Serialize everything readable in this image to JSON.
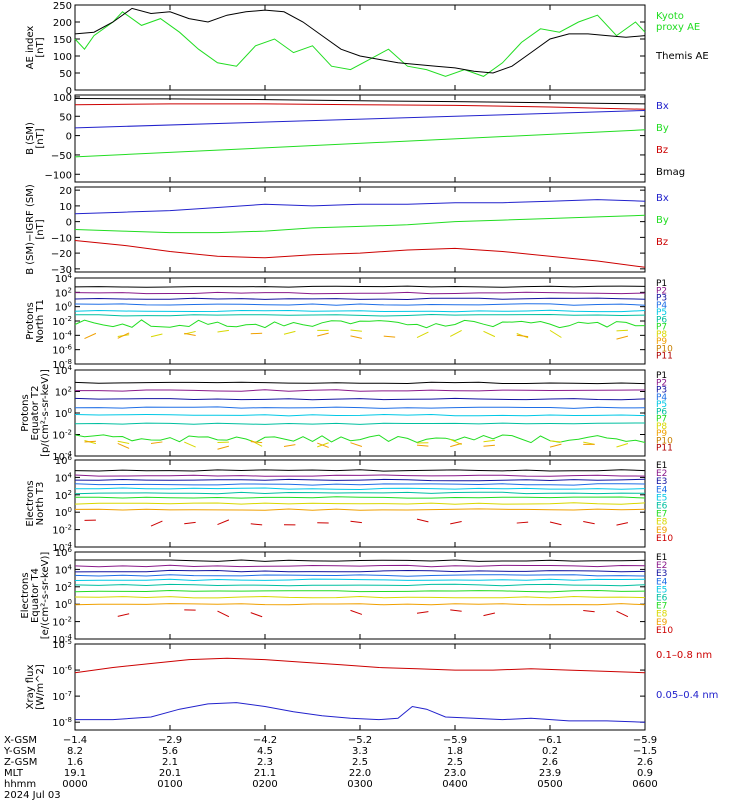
{
  "colors": {
    "black": "#000000",
    "red": "#cc0000",
    "green": "#22dd22",
    "blue": "#2222cc",
    "purple": "#8a1a8a",
    "navy": "#1414a0",
    "dodger": "#1e6ee6",
    "cyan": "#00c8e6",
    "teal": "#00bfa0",
    "yellow": "#d8d800",
    "orange": "#f0a000",
    "ochre": "#c88000",
    "darkred": "#b00000"
  },
  "chart_data": [
    {
      "type": "line",
      "id": "ae",
      "ylabel": [
        "AE index",
        "[nT]"
      ],
      "ylim": [
        0,
        250
      ],
      "yticks": [
        {
          "v": 0,
          "label": "0"
        },
        {
          "v": 50,
          "label": "50"
        },
        {
          "v": 100,
          "label": "100"
        },
        {
          "v": 150,
          "label": "150"
        },
        {
          "v": 200,
          "label": "200"
        },
        {
          "v": 250,
          "label": "250"
        }
      ],
      "series": [
        {
          "name": "Kyoto\nproxy AE",
          "color": "#22dd22",
          "x": [
            0,
            0.1,
            0.2,
            0.4,
            0.5,
            0.7,
            0.9,
            1.1,
            1.3,
            1.5,
            1.7,
            1.9,
            2.1,
            2.3,
            2.5,
            2.7,
            2.9,
            3.1,
            3.3,
            3.5,
            3.7,
            3.9,
            4.1,
            4.3,
            4.5,
            4.7,
            4.9,
            5.1,
            5.3,
            5.5,
            5.7,
            5.9,
            6.0
          ],
          "y": [
            150,
            120,
            160,
            200,
            230,
            190,
            210,
            170,
            120,
            80,
            70,
            130,
            150,
            110,
            130,
            70,
            60,
            90,
            120,
            70,
            60,
            40,
            60,
            40,
            80,
            140,
            180,
            170,
            200,
            220,
            160,
            200,
            170
          ]
        },
        {
          "name": "Themis AE",
          "color": "#000000",
          "x": [
            0,
            0.2,
            0.4,
            0.6,
            0.8,
            1.0,
            1.2,
            1.4,
            1.6,
            1.8,
            2.0,
            2.2,
            2.4,
            2.6,
            2.8,
            3.0,
            3.2,
            3.4,
            3.6,
            3.8,
            4.0,
            4.2,
            4.4,
            4.6,
            4.8,
            5.0,
            5.2,
            5.4,
            5.6,
            5.8,
            6.0
          ],
          "y": [
            165,
            170,
            200,
            240,
            225,
            230,
            210,
            200,
            220,
            230,
            235,
            230,
            200,
            160,
            120,
            100,
            90,
            80,
            75,
            70,
            65,
            55,
            50,
            70,
            110,
            150,
            165,
            165,
            160,
            155,
            160
          ]
        }
      ]
    },
    {
      "type": "line",
      "id": "bsm",
      "ylabel": [
        "B (SM)",
        "[nT]"
      ],
      "ylim": [
        -120,
        105
      ],
      "yticks": [
        {
          "v": -100,
          "label": "−100"
        },
        {
          "v": -50,
          "label": "−50"
        },
        {
          "v": 0,
          "label": "0"
        },
        {
          "v": 50,
          "label": "50"
        },
        {
          "v": 100,
          "label": "100"
        }
      ],
      "series": [
        {
          "name": "Bx",
          "color": "#2222cc",
          "x": [
            0,
            6
          ],
          "y": [
            20,
            65
          ]
        },
        {
          "name": "By",
          "color": "#22dd22",
          "x": [
            0,
            6
          ],
          "y": [
            -55,
            15
          ]
        },
        {
          "name": "Bz",
          "color": "#cc0000",
          "x": [
            0,
            1,
            2,
            3,
            4,
            5,
            6
          ],
          "y": [
            80,
            82,
            82,
            80,
            78,
            74,
            68
          ]
        },
        {
          "name": "Bmag",
          "color": "#000000",
          "x": [
            0,
            1,
            2,
            3,
            4,
            5,
            6
          ],
          "y": [
            96,
            95,
            93,
            90,
            88,
            85,
            82
          ]
        }
      ]
    },
    {
      "type": "line",
      "id": "bdiff",
      "ylabel": [
        "B (SM)−IGRF (SM)",
        "[nT]"
      ],
      "ylim": [
        -32,
        22
      ],
      "yticks": [
        {
          "v": -30,
          "label": "−30"
        },
        {
          "v": -20,
          "label": "−20"
        },
        {
          "v": -10,
          "label": "−10"
        },
        {
          "v": 0,
          "label": "0"
        },
        {
          "v": 10,
          "label": "10"
        },
        {
          "v": 20,
          "label": "20"
        }
      ],
      "series": [
        {
          "name": "Bx",
          "color": "#2222cc",
          "x": [
            0,
            0.5,
            1,
            1.5,
            2,
            2.5,
            3,
            3.5,
            4,
            4.5,
            5,
            5.5,
            6
          ],
          "y": [
            5,
            6,
            7,
            9,
            11,
            10,
            11,
            11,
            12,
            12,
            13,
            14,
            13
          ]
        },
        {
          "name": "By",
          "color": "#22dd22",
          "x": [
            0,
            0.5,
            1,
            1.5,
            2,
            2.5,
            3,
            3.5,
            4,
            4.5,
            5,
            5.5,
            6
          ],
          "y": [
            -5,
            -6,
            -7,
            -7,
            -6,
            -4,
            -3,
            -2,
            0,
            1,
            2,
            3,
            4
          ]
        },
        {
          "name": "Bz",
          "color": "#cc0000",
          "x": [
            0,
            0.5,
            1,
            1.5,
            2,
            2.5,
            3,
            3.5,
            4,
            4.5,
            5,
            5.5,
            6
          ],
          "y": [
            -12,
            -15,
            -19,
            -22,
            -23,
            -21,
            -20,
            -18,
            -17,
            -19,
            -22,
            -25,
            -29
          ]
        }
      ]
    },
    {
      "type": "line",
      "id": "pt1",
      "ylabel": [
        "Protons",
        "North T1"
      ],
      "log": true,
      "ylim": [
        -8,
        4
      ],
      "yticks": [
        {
          "v": 4,
          "label": "10",
          "exp": "4"
        },
        {
          "v": 2,
          "label": "10",
          "exp": "2"
        },
        {
          "v": 0,
          "label": "10",
          "exp": "0"
        },
        {
          "v": -2,
          "label": "10",
          "exp": "-2"
        },
        {
          "v": -4,
          "label": "10",
          "exp": "-4"
        },
        {
          "v": -6,
          "label": "10",
          "exp": "-6"
        },
        {
          "v": -8,
          "label": "10",
          "exp": "-8"
        }
      ],
      "series": [
        {
          "name": "P1",
          "color": "#000000",
          "level": 2.8
        },
        {
          "name": "P2",
          "color": "#8a1a8a",
          "level": 1.9
        },
        {
          "name": "P3",
          "color": "#1414a0",
          "level": 1.1
        },
        {
          "name": "P4",
          "color": "#1e6ee6",
          "level": 0.3
        },
        {
          "name": "P5",
          "color": "#00c8e6",
          "level": -0.6
        },
        {
          "name": "P6",
          "color": "#00bfa0",
          "level": -1.2
        },
        {
          "name": "P7",
          "color": "#22dd22",
          "level": -2.4,
          "noisy": true
        },
        {
          "name": "P8",
          "color": "#d8d800",
          "level": -3.8,
          "sparse": true
        },
        {
          "name": "P9",
          "color": "#f0a000",
          "level": -4.0,
          "sparse": true
        },
        {
          "name": "P10",
          "color": "#c88000"
        },
        {
          "name": "P11",
          "color": "#b00000"
        }
      ]
    },
    {
      "type": "line",
      "id": "pt2",
      "ylabel": [
        "Protons",
        "Equator T2",
        "[p/(cm²-s-sr-keV)]"
      ],
      "log": true,
      "ylim": [
        -4,
        4
      ],
      "yticks": [
        {
          "v": 4,
          "label": "10",
          "exp": "4"
        },
        {
          "v": 2,
          "label": "10",
          "exp": "2"
        },
        {
          "v": 0,
          "label": "10",
          "exp": "0"
        },
        {
          "v": -2,
          "label": "10",
          "exp": "-2"
        },
        {
          "v": -4,
          "label": "10",
          "exp": "-4"
        }
      ],
      "series": [
        {
          "name": "P1",
          "color": "#000000",
          "level": 2.8
        },
        {
          "name": "P2",
          "color": "#8a1a8a",
          "level": 2.1
        },
        {
          "name": "P3",
          "color": "#1414a0",
          "level": 1.3
        },
        {
          "name": "P4",
          "color": "#1e6ee6",
          "level": 0.5
        },
        {
          "name": "P5",
          "color": "#00c8e6",
          "level": -0.2
        },
        {
          "name": "P6",
          "color": "#00bfa0",
          "level": -1.0
        },
        {
          "name": "P7",
          "color": "#22dd22",
          "level": -2.4,
          "noisy": true
        },
        {
          "name": "P8",
          "color": "#d8d800",
          "level": -2.8,
          "sparse": true
        },
        {
          "name": "P9",
          "color": "#f0a000",
          "level": -3.0,
          "sparse": true
        },
        {
          "name": "P10",
          "color": "#c88000"
        },
        {
          "name": "P11",
          "color": "#b00000"
        }
      ]
    },
    {
      "type": "line",
      "id": "et3",
      "ylabel": [
        "Electrons",
        "North T3"
      ],
      "log": true,
      "ylim": [
        -4,
        6
      ],
      "yticks": [
        {
          "v": 6,
          "label": "10",
          "exp": "6"
        },
        {
          "v": 4,
          "label": "10",
          "exp": "4"
        },
        {
          "v": 2,
          "label": "10",
          "exp": "2"
        },
        {
          "v": 0,
          "label": "10",
          "exp": "0"
        },
        {
          "v": -2,
          "label": "10",
          "exp": "-2"
        },
        {
          "v": -4,
          "label": "10",
          "exp": "-4"
        }
      ],
      "series": [
        {
          "name": "E1",
          "color": "#000000",
          "level": 4.8
        },
        {
          "name": "E2",
          "color": "#8a1a8a",
          "level": 4.2
        },
        {
          "name": "E3",
          "color": "#1414a0",
          "level": 3.7
        },
        {
          "name": "E4",
          "color": "#1e6ee6",
          "level": 3.2
        },
        {
          "name": "E5",
          "color": "#00c8e6",
          "level": 2.7
        },
        {
          "name": "E6",
          "color": "#00bfa0",
          "level": 2.2
        },
        {
          "name": "E7",
          "color": "#22dd22",
          "level": 1.7
        },
        {
          "name": "E8",
          "color": "#d8d800",
          "level": 1.0
        },
        {
          "name": "E9",
          "color": "#f0a000",
          "level": 0.3
        },
        {
          "name": "E10",
          "color": "#cc0000",
          "level": -1.2,
          "sparse": true
        }
      ]
    },
    {
      "type": "line",
      "id": "et4",
      "ylabel": [
        "Electrons",
        "Equator T4",
        "[e/(cm²-s-sr-keV)]"
      ],
      "log": true,
      "ylim": [
        -4,
        6
      ],
      "yticks": [
        {
          "v": 6,
          "label": "10",
          "exp": "6"
        },
        {
          "v": 4,
          "label": "10",
          "exp": "4"
        },
        {
          "v": 2,
          "label": "10",
          "exp": "2"
        },
        {
          "v": 0,
          "label": "10",
          "exp": "0"
        },
        {
          "v": -2,
          "label": "10",
          "exp": "-2"
        },
        {
          "v": -4,
          "label": "10",
          "exp": "-4"
        }
      ],
      "series": [
        {
          "name": "E1",
          "color": "#000000",
          "level": 5.0
        },
        {
          "name": "E2",
          "color": "#8a1a8a",
          "level": 4.4
        },
        {
          "name": "E3",
          "color": "#1414a0",
          "level": 3.8
        },
        {
          "name": "E4",
          "color": "#1e6ee6",
          "level": 3.3
        },
        {
          "name": "E5",
          "color": "#00c8e6",
          "level": 2.8
        },
        {
          "name": "E6",
          "color": "#00bfa0",
          "level": 2.2
        },
        {
          "name": "E7",
          "color": "#22dd22",
          "level": 1.5
        },
        {
          "name": "E8",
          "color": "#d8d800",
          "level": 0.8
        },
        {
          "name": "E9",
          "color": "#f0a000",
          "level": 0.0
        },
        {
          "name": "E10",
          "color": "#cc0000",
          "level": -1.0,
          "sparse": true
        }
      ]
    },
    {
      "type": "line",
      "id": "xray",
      "ylabel": [
        "Xray flux",
        "[W/m^2]"
      ],
      "log": true,
      "ylim": [
        -8.3,
        -5
      ],
      "yticks": [
        {
          "v": -5,
          "label": "10",
          "exp": "-5"
        },
        {
          "v": -6,
          "label": "10",
          "exp": "-6"
        },
        {
          "v": -7,
          "label": "10",
          "exp": "-7"
        },
        {
          "v": -8,
          "label": "10",
          "exp": "-8"
        }
      ],
      "series": [
        {
          "name": "0.1–0.8 nm",
          "color": "#cc0000",
          "x": [
            0,
            0.4,
            0.8,
            1.2,
            1.6,
            2.0,
            2.4,
            2.8,
            3.2,
            3.6,
            4.0,
            4.4,
            4.8,
            5.2,
            5.6,
            6.0
          ],
          "y": [
            -6.1,
            -5.9,
            -5.75,
            -5.6,
            -5.55,
            -5.6,
            -5.7,
            -5.8,
            -5.9,
            -5.95,
            -6.0,
            -6.0,
            -5.95,
            -6.0,
            -6.05,
            -6.1
          ]
        },
        {
          "name": "0.05–0.4 nm",
          "color": "#2222cc",
          "x": [
            0,
            0.4,
            0.8,
            1.1,
            1.4,
            1.7,
            2.0,
            2.3,
            2.6,
            2.9,
            3.2,
            3.4,
            3.55,
            3.7,
            3.9,
            4.2,
            4.5,
            4.8,
            5.2,
            5.6,
            6.0
          ],
          "y": [
            -7.9,
            -7.9,
            -7.8,
            -7.5,
            -7.3,
            -7.25,
            -7.4,
            -7.6,
            -7.75,
            -7.85,
            -7.9,
            -7.85,
            -7.4,
            -7.5,
            -7.8,
            -7.85,
            -7.9,
            -7.85,
            -7.95,
            -7.95,
            -8.0
          ]
        }
      ]
    }
  ],
  "footer": {
    "row_labels": [
      "X-GSM",
      "Y-GSM",
      "Z-GSM",
      "MLT",
      "hhmm",
      "2024 Jul 03"
    ],
    "columns": [
      {
        "x": 0,
        "values": [
          "−1.4",
          "8.2",
          "1.6",
          "19.1",
          "0000"
        ]
      },
      {
        "x": 1,
        "values": [
          "−2.9",
          "5.6",
          "2.1",
          "20.1",
          "0100"
        ]
      },
      {
        "x": 2,
        "values": [
          "−4.2",
          "4.5",
          "2.3",
          "21.1",
          "0200"
        ]
      },
      {
        "x": 3,
        "values": [
          "−5.2",
          "3.3",
          "2.5",
          "22.0",
          "0300"
        ]
      },
      {
        "x": 4,
        "values": [
          "−5.9",
          "1.8",
          "2.5",
          "23.0",
          "0400"
        ]
      },
      {
        "x": 5,
        "values": [
          "−6.1",
          "0.2",
          "2.6",
          "23.9",
          "0500"
        ]
      },
      {
        "x": 6,
        "values": [
          "−5.9",
          "−1.5",
          "2.6",
          "0.9",
          "0600"
        ]
      }
    ]
  }
}
